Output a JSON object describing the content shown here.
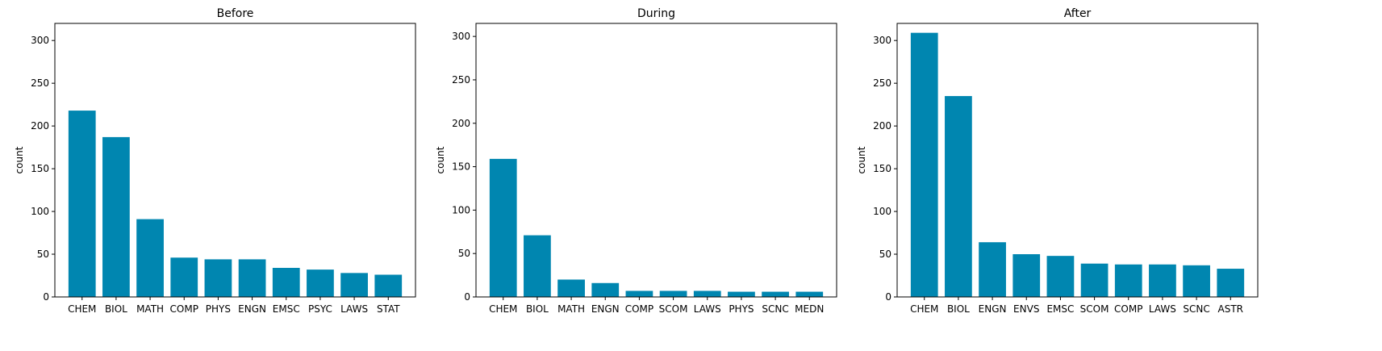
{
  "chart_data": [
    {
      "type": "bar",
      "title": "Before",
      "xlabel": "",
      "ylabel": "count",
      "ylim": [
        0,
        320
      ],
      "yticks": [
        0,
        50,
        100,
        150,
        200,
        250,
        300
      ],
      "grid": false,
      "bar_color": "#0086b0",
      "categories": [
        "CHEM",
        "BIOL",
        "MATH",
        "COMP",
        "PHYS",
        "ENGN",
        "EMSC",
        "PSYC",
        "LAWS",
        "STAT"
      ],
      "values": [
        218,
        187,
        91,
        46,
        44,
        44,
        34,
        32,
        28,
        26
      ]
    },
    {
      "type": "bar",
      "title": "During",
      "xlabel": "",
      "ylabel": "count",
      "ylim": [
        0,
        315
      ],
      "yticks": [
        0,
        50,
        100,
        150,
        200,
        250,
        300
      ],
      "grid": false,
      "bar_color": "#0086b0",
      "categories": [
        "CHEM",
        "BIOL",
        "MATH",
        "ENGN",
        "COMP",
        "SCOM",
        "LAWS",
        "PHYS",
        "SCNC",
        "MEDN"
      ],
      "values": [
        159,
        71,
        20,
        16,
        7,
        7,
        7,
        6,
        6,
        6
      ]
    },
    {
      "type": "bar",
      "title": "After",
      "xlabel": "",
      "ylabel": "count",
      "ylim": [
        0,
        320
      ],
      "yticks": [
        0,
        50,
        100,
        150,
        200,
        250,
        300
      ],
      "grid": false,
      "bar_color": "#0086b0",
      "categories": [
        "CHEM",
        "BIOL",
        "ENGN",
        "ENVS",
        "EMSC",
        "SCOM",
        "COMP",
        "LAWS",
        "SCNC",
        "ASTR"
      ],
      "values": [
        309,
        235,
        64,
        50,
        48,
        39,
        38,
        38,
        37,
        33
      ]
    }
  ]
}
